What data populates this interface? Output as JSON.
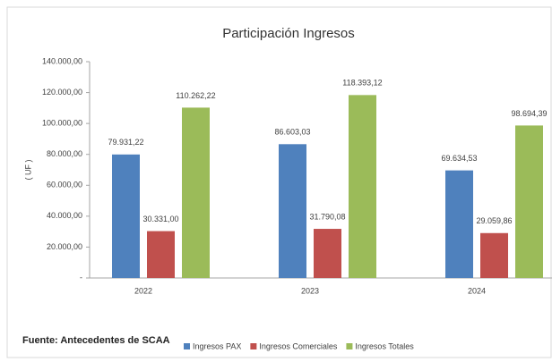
{
  "chart_data": {
    "type": "bar",
    "title": "Participación Ingresos",
    "y_label": "( UF )",
    "source": "Fuente: Antecedentes de SCAA",
    "categories": [
      "2022",
      "2023",
      "2024"
    ],
    "series": [
      {
        "name": "Ingresos PAX",
        "color": "#4f81bd",
        "values": [
          79931.22,
          86603.03,
          69634.53
        ],
        "value_labels": [
          "79.931,22",
          "86.603,03",
          "69.634,53"
        ]
      },
      {
        "name": "Ingresos Comerciales",
        "color": "#c0504d",
        "values": [
          30331.0,
          31790.08,
          29059.86
        ],
        "value_labels": [
          "30.331,00",
          "31.790,08",
          "29.059,86"
        ]
      },
      {
        "name": "Ingresos Totales",
        "color": "#9bbb59",
        "values": [
          110262.22,
          118393.12,
          98694.39
        ],
        "value_labels": [
          "110.262,22",
          "118.393,12",
          "98.694,39"
        ]
      }
    ],
    "ylim": [
      0,
      140000
    ],
    "yticks": [
      {
        "value": 0,
        "label": "-"
      },
      {
        "value": 20000,
        "label": "20.000,00"
      },
      {
        "value": 40000,
        "label": "40.000,00"
      },
      {
        "value": 60000,
        "label": "60.000,00"
      },
      {
        "value": 80000,
        "label": "80.000,00"
      },
      {
        "value": 100000,
        "label": "100.000,00"
      },
      {
        "value": 120000,
        "label": "120.000,00"
      },
      {
        "value": 140000,
        "label": "140.000,00"
      }
    ],
    "grid": false,
    "legend": "bottom"
  }
}
